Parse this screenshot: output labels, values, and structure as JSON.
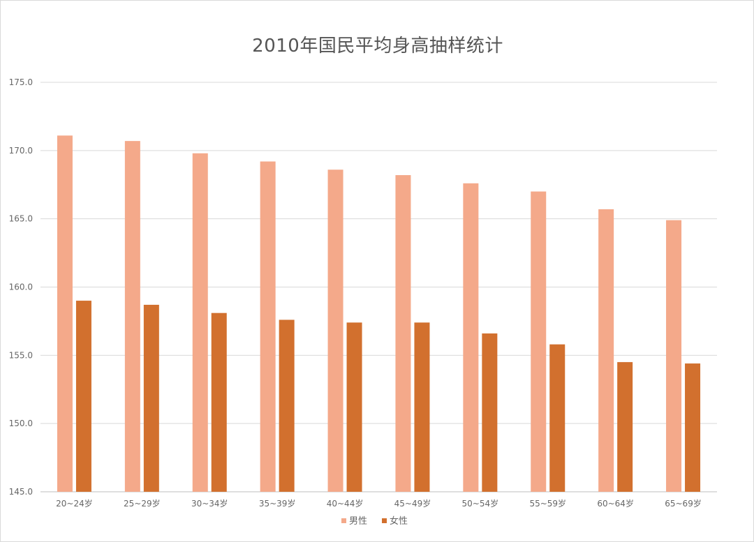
{
  "chart_data": {
    "type": "bar",
    "title": "2010年国民平均身高抽样统计",
    "xlabel": "",
    "ylabel": "",
    "categories": [
      "20~24岁",
      "25~29岁",
      "30~34岁",
      "35~39岁",
      "40~44岁",
      "45~49岁",
      "50~54岁",
      "55~59岁",
      "60~64岁",
      "65~69岁"
    ],
    "series": [
      {
        "name": "男性",
        "color": "#F4A98A",
        "values": [
          171.1,
          170.7,
          169.8,
          169.2,
          168.6,
          168.2,
          167.6,
          167.0,
          165.7,
          164.9
        ]
      },
      {
        "name": "女性",
        "color": "#D2702E",
        "values": [
          159.0,
          158.7,
          158.1,
          157.6,
          157.4,
          157.4,
          156.6,
          155.8,
          154.5,
          154.4
        ]
      }
    ],
    "ylim": [
      145,
      175
    ],
    "yticks": [
      "145.0",
      "150.0",
      "155.0",
      "160.0",
      "165.0",
      "170.0",
      "175.0"
    ],
    "grid": true,
    "legend": "bottom-center"
  }
}
